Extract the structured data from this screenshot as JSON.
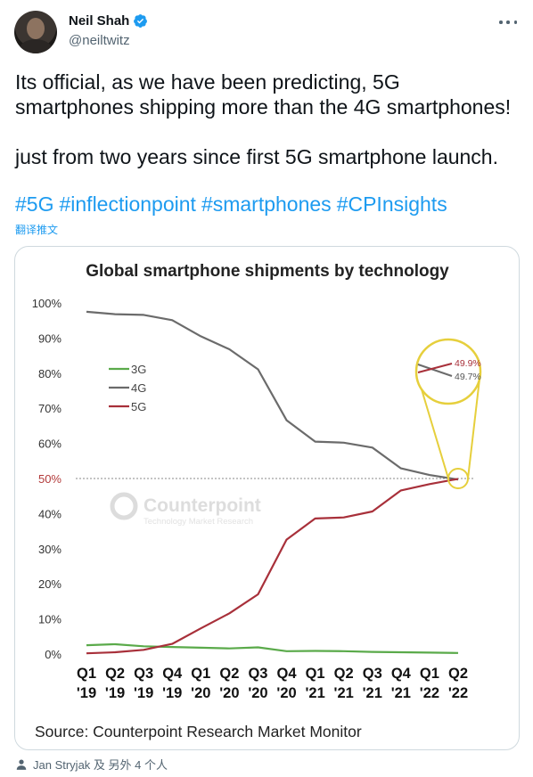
{
  "tweet": {
    "author_name": "Neil Shah",
    "author_handle": "@neiltwitz",
    "text_line1": "Its official, as we have been predicting, 5G",
    "text_line2": "smartphones shipping more than the 4G smartphones!",
    "text_line3": "just from two years since first 5G smartphone launch.",
    "hashtags": [
      "#5G",
      "#inflectionpoint",
      "#smartphones",
      "#CPInsights"
    ],
    "translate_label": "翻译推文",
    "liked_by": "Jan Stryjak 及 另外 4 个人"
  },
  "icons": {
    "verified": "verified-badge-icon",
    "more": "more-dots-icon",
    "person": "person-icon"
  },
  "colors": {
    "link": "#1d9bf0",
    "3g": "#5aaa4a",
    "4g": "#6b6b6b",
    "5g": "#a8303a",
    "highlight": "#e6cf3c"
  },
  "chart_data": {
    "type": "line",
    "title": "Global smartphone shipments by technology",
    "source": "Source: Counterpoint Research Market Monitor",
    "watermark": "Counterpoint",
    "watermark_sub": "Technology Market Research",
    "categories": [
      [
        "Q1",
        "'19"
      ],
      [
        "Q2",
        "'19"
      ],
      [
        "Q3",
        "'19"
      ],
      [
        "Q4",
        "'19"
      ],
      [
        "Q1",
        "'20"
      ],
      [
        "Q2",
        "'20"
      ],
      [
        "Q3",
        "'20"
      ],
      [
        "Q4",
        "'20"
      ],
      [
        "Q1",
        "'21"
      ],
      [
        "Q2",
        "'21"
      ],
      [
        "Q3",
        "'21"
      ],
      [
        "Q4",
        "'21"
      ],
      [
        "Q1",
        "'22"
      ],
      [
        "Q2",
        "'22"
      ]
    ],
    "yticks": [
      "0%",
      "10%",
      "20%",
      "30%",
      "40%",
      "50%",
      "60%",
      "70%",
      "80%",
      "90%",
      "100%"
    ],
    "ylim": [
      0,
      100
    ],
    "reference_line": 50,
    "series": [
      {
        "name": "3G",
        "color": "#5aaa4a",
        "values": [
          2.5,
          2.8,
          2.2,
          2.0,
          1.8,
          1.6,
          1.9,
          0.8,
          0.9,
          0.8,
          0.6,
          0.5,
          0.4,
          0.3
        ]
      },
      {
        "name": "4G",
        "color": "#6b6b6b",
        "values": [
          97.5,
          96.8,
          96.6,
          95.1,
          90.5,
          86.8,
          81.1,
          66.6,
          60.5,
          60.2,
          58.8,
          52.9,
          51.0,
          49.7
        ]
      },
      {
        "name": "5G",
        "color": "#a8303a",
        "values": [
          0.2,
          0.5,
          1.2,
          2.9,
          7.3,
          11.6,
          17.0,
          32.6,
          38.6,
          38.9,
          40.6,
          46.6,
          48.4,
          49.9
        ]
      }
    ],
    "callout": {
      "label_5g": "49.9%",
      "label_4g": "49.7%"
    }
  }
}
